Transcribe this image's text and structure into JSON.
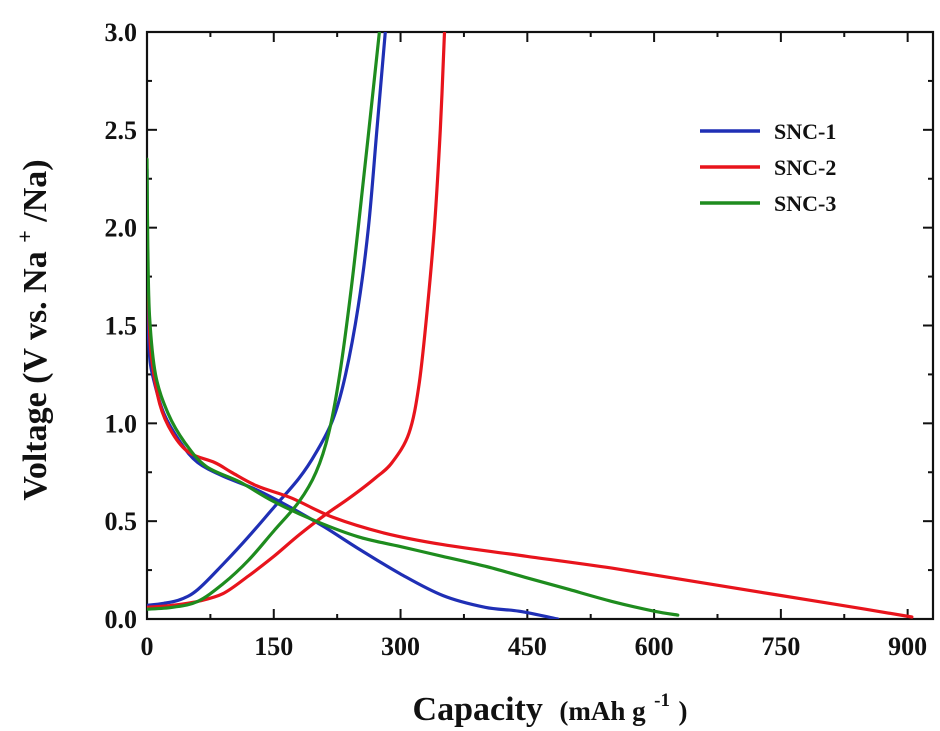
{
  "chart_data": {
    "type": "line",
    "xlabel_main": "Capacity",
    "xlabel_unit": "(mAh g",
    "xlabel_sup": "-1",
    "xlabel_close": ")",
    "ylabel_main": "Voltage (V vs. Na",
    "ylabel_sup": "+",
    "ylabel_tail": "/Na)",
    "xlim": [
      0,
      930
    ],
    "ylim": [
      0,
      3.0
    ],
    "xticks": [
      "0",
      "150",
      "300",
      "450",
      "600",
      "750",
      "900"
    ],
    "xtick_values": [
      0,
      150,
      300,
      450,
      600,
      750,
      900
    ],
    "yticks": [
      "0.0",
      "0.5",
      "1.0",
      "1.5",
      "2.0",
      "2.5",
      "3.0"
    ],
    "ytick_values": [
      0,
      0.5,
      1.0,
      1.5,
      2.0,
      2.5,
      3.0
    ],
    "legend_position": "top-right",
    "series": [
      {
        "name": "SNC-1",
        "color": "#1f2fb5",
        "discharge": [
          [
            0,
            2.3
          ],
          [
            1,
            1.6
          ],
          [
            3,
            1.35
          ],
          [
            8,
            1.22
          ],
          [
            20,
            1.05
          ],
          [
            40,
            0.9
          ],
          [
            60,
            0.8
          ],
          [
            90,
            0.73
          ],
          [
            130,
            0.66
          ],
          [
            170,
            0.57
          ],
          [
            210,
            0.47
          ],
          [
            250,
            0.36
          ],
          [
            300,
            0.23
          ],
          [
            350,
            0.12
          ],
          [
            400,
            0.06
          ],
          [
            440,
            0.04
          ],
          [
            486,
            0.0
          ]
        ],
        "charge": [
          [
            0,
            0.07
          ],
          [
            20,
            0.08
          ],
          [
            40,
            0.1
          ],
          [
            60,
            0.15
          ],
          [
            90,
            0.28
          ],
          [
            120,
            0.42
          ],
          [
            150,
            0.57
          ],
          [
            180,
            0.72
          ],
          [
            200,
            0.85
          ],
          [
            220,
            1.02
          ],
          [
            235,
            1.25
          ],
          [
            250,
            1.6
          ],
          [
            262,
            2.0
          ],
          [
            272,
            2.5
          ],
          [
            282,
            3.0
          ]
        ]
      },
      {
        "name": "SNC-2",
        "color": "#e8141c",
        "discharge": [
          [
            0,
            1.95
          ],
          [
            2,
            1.6
          ],
          [
            5,
            1.35
          ],
          [
            15,
            1.1
          ],
          [
            30,
            0.95
          ],
          [
            50,
            0.85
          ],
          [
            80,
            0.8
          ],
          [
            100,
            0.75
          ],
          [
            130,
            0.68
          ],
          [
            170,
            0.62
          ],
          [
            220,
            0.52
          ],
          [
            280,
            0.44
          ],
          [
            350,
            0.38
          ],
          [
            450,
            0.32
          ],
          [
            550,
            0.26
          ],
          [
            650,
            0.19
          ],
          [
            750,
            0.12
          ],
          [
            850,
            0.05
          ],
          [
            905,
            0.01
          ]
        ],
        "charge": [
          [
            0,
            0.06
          ],
          [
            30,
            0.07
          ],
          [
            60,
            0.09
          ],
          [
            90,
            0.13
          ],
          [
            120,
            0.22
          ],
          [
            150,
            0.32
          ],
          [
            180,
            0.43
          ],
          [
            210,
            0.53
          ],
          [
            240,
            0.62
          ],
          [
            270,
            0.72
          ],
          [
            290,
            0.8
          ],
          [
            310,
            0.95
          ],
          [
            322,
            1.2
          ],
          [
            332,
            1.6
          ],
          [
            340,
            2.0
          ],
          [
            347,
            2.5
          ],
          [
            352,
            3.0
          ]
        ]
      },
      {
        "name": "SNC-3",
        "color": "#1e8c1e",
        "discharge": [
          [
            0,
            2.35
          ],
          [
            1,
            1.9
          ],
          [
            3,
            1.55
          ],
          [
            10,
            1.25
          ],
          [
            25,
            1.05
          ],
          [
            45,
            0.9
          ],
          [
            70,
            0.78
          ],
          [
            110,
            0.7
          ],
          [
            150,
            0.6
          ],
          [
            200,
            0.5
          ],
          [
            250,
            0.42
          ],
          [
            300,
            0.37
          ],
          [
            350,
            0.32
          ],
          [
            400,
            0.27
          ],
          [
            450,
            0.21
          ],
          [
            500,
            0.15
          ],
          [
            550,
            0.09
          ],
          [
            600,
            0.04
          ],
          [
            628,
            0.02
          ]
        ],
        "charge": [
          [
            0,
            0.05
          ],
          [
            30,
            0.06
          ],
          [
            60,
            0.09
          ],
          [
            90,
            0.18
          ],
          [
            120,
            0.3
          ],
          [
            150,
            0.45
          ],
          [
            180,
            0.6
          ],
          [
            200,
            0.75
          ],
          [
            215,
            0.95
          ],
          [
            228,
            1.25
          ],
          [
            242,
            1.7
          ],
          [
            255,
            2.2
          ],
          [
            265,
            2.6
          ],
          [
            275,
            3.0
          ]
        ]
      }
    ]
  }
}
